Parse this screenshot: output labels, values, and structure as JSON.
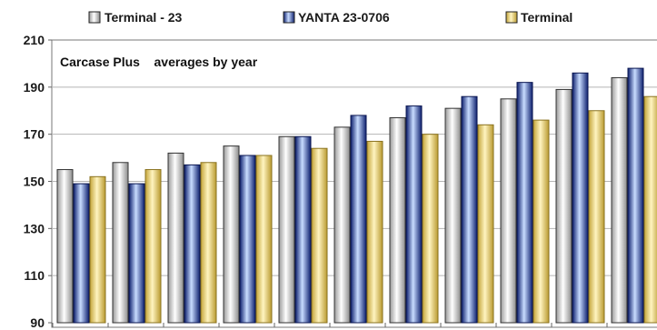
{
  "chart_data": {
    "type": "bar",
    "title": "Carcase Plus    averages by year",
    "categories": [
      "",
      "",
      "",
      "",
      "",
      "",
      "",
      "",
      "",
      "",
      ""
    ],
    "series": [
      {
        "name": "Terminal - 23",
        "values": [
          155,
          158,
          162,
          165,
          169,
          173,
          177,
          181,
          185,
          189,
          194
        ],
        "color": "#ffffff"
      },
      {
        "name": "YANTA 23-0706",
        "values": [
          149,
          149,
          157,
          161,
          169,
          178,
          182,
          186,
          192,
          196,
          198
        ],
        "color": "#1f3b9a"
      },
      {
        "name": "Terminal",
        "values": [
          152,
          155,
          158,
          161,
          164,
          167,
          170,
          174,
          176,
          180,
          186
        ],
        "color": "#d9c25a"
      }
    ],
    "ylim": [
      90,
      210
    ],
    "yticks": [
      90,
      110,
      130,
      150,
      170,
      190,
      210
    ],
    "grid": true,
    "legend_position": "top"
  }
}
